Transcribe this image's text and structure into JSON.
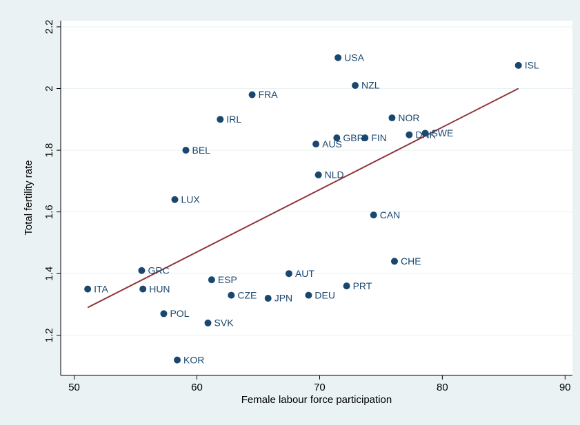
{
  "chart_data": {
    "type": "scatter",
    "xlabel": "Female labour force participation",
    "ylabel": "Total fertility rate",
    "xlim": [
      48.9,
      90.6
    ],
    "ylim": [
      1.07,
      2.22
    ],
    "xticks": [
      50,
      60,
      70,
      80,
      90
    ],
    "yticks": [
      1.2,
      1.4,
      1.6,
      1.8,
      2,
      2.2
    ],
    "grid": true,
    "points": {
      "color": "#1a476f",
      "labels": [
        "USA",
        "ISL",
        "NZL",
        "FRA",
        "IRL",
        "NOR",
        "DNK",
        "SWE",
        "GBR",
        "FIN",
        "AUS",
        "BEL",
        "NLD",
        "LUX",
        "CAN",
        "CHE",
        "GRC",
        "AUT",
        "ITA",
        "HUN",
        "ESP",
        "PRT",
        "CZE",
        "DEU",
        "JPN",
        "POL",
        "SVK",
        "KOR"
      ],
      "x": [
        71.5,
        86.2,
        72.9,
        64.5,
        61.9,
        75.9,
        77.3,
        78.6,
        71.4,
        73.7,
        69.7,
        59.1,
        69.9,
        58.2,
        74.4,
        76.1,
        55.5,
        67.5,
        51.1,
        55.6,
        61.2,
        72.2,
        62.8,
        69.1,
        65.8,
        57.3,
        60.9,
        58.4
      ],
      "y": [
        2.1,
        2.075,
        2.01,
        1.98,
        1.9,
        1.905,
        1.85,
        1.855,
        1.84,
        1.84,
        1.82,
        1.8,
        1.72,
        1.64,
        1.59,
        1.44,
        1.41,
        1.4,
        1.35,
        1.35,
        1.38,
        1.36,
        1.33,
        1.33,
        1.32,
        1.27,
        1.24,
        1.12
      ]
    },
    "fit": {
      "color": "#90353b",
      "x": [
        51.1,
        86.2
      ],
      "y": [
        1.29,
        2.0
      ]
    }
  }
}
